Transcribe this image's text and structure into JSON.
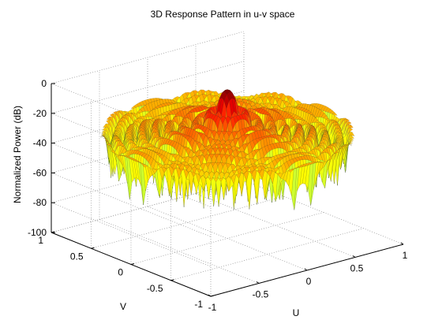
{
  "chart_data": {
    "type": "surface",
    "title": "3D Response Pattern in u-v space",
    "xlabel": "U",
    "ylabel": "V",
    "zlabel": "Normalized Power (dB)",
    "xlim": [
      -1,
      1
    ],
    "ylim": [
      -1,
      1
    ],
    "zlim": [
      -100,
      0
    ],
    "x_ticks": [
      -1,
      -0.5,
      0,
      0.5,
      1
    ],
    "y_ticks": [
      -1,
      -0.5,
      0,
      0.5,
      1
    ],
    "z_ticks": [
      -100,
      -80,
      -60,
      -40,
      -20,
      0
    ],
    "x_tick_labels": [
      "-1",
      "-0.5",
      "0",
      "0.5",
      "1"
    ],
    "y_tick_labels": [
      "-1",
      "-0.5",
      "0",
      "0.5",
      "1"
    ],
    "z_tick_labels": [
      "-100",
      "-80",
      "-60",
      "-40",
      "-20",
      "0"
    ],
    "grid": true,
    "box": "open",
    "colormap": "jet",
    "domain": "circular, u^2 + v^2 <= 1",
    "main_lobe_peak_db": 0,
    "sidelobe_floor_db": -60,
    "null_depth_db": -100
  }
}
